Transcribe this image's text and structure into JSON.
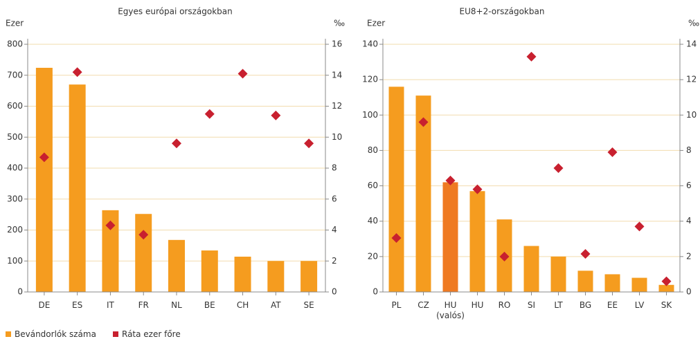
{
  "chart_data": [
    {
      "type": "bar",
      "title": "Egyes európai országokban",
      "y_label": "Ezer",
      "y2_label": "‰",
      "categories": [
        "DE",
        "ES",
        "IT",
        "FR",
        "NL",
        "BE",
        "CH",
        "AT",
        "SE"
      ],
      "series": [
        {
          "name": "Bevándorlók száma",
          "color": "#f59c1f",
          "values": [
            724,
            670,
            264,
            252,
            168,
            134,
            114,
            100,
            100
          ]
        },
        {
          "name": "Ráta ezer főre",
          "color": "#c8202f",
          "axis": "y2",
          "marker": "diamond",
          "values": [
            8.7,
            14.2,
            4.3,
            3.7,
            9.6,
            11.5,
            14.1,
            11.4,
            9.6
          ]
        }
      ],
      "ylim": [
        0,
        800
      ],
      "yticks": [
        0,
        100,
        200,
        300,
        400,
        500,
        600,
        700,
        800
      ],
      "y2lim": [
        0,
        16
      ],
      "y2ticks": [
        0,
        2,
        4,
        6,
        8,
        10,
        12,
        14,
        16
      ],
      "grid": true
    },
    {
      "type": "bar",
      "title": "EU8+2-országokban",
      "y_label": "Ezer",
      "y2_label": "‰",
      "categories": [
        "PL",
        "CZ",
        "HU (valós)",
        "HU",
        "RO",
        "SI",
        "LT",
        "BG",
        "EE",
        "LV",
        "SK"
      ],
      "series": [
        {
          "color": "#f59c1f",
          "colors": [
            "#f59c1f",
            "#f59c1f",
            "#ef7a22",
            "#f59c1f",
            "#f59c1f",
            "#f59c1f",
            "#f59c1f",
            "#f59c1f",
            "#f59c1f",
            "#f59c1f",
            "#f59c1f"
          ],
          "values": [
            116,
            111,
            62,
            57,
            41,
            26,
            20,
            12,
            10,
            8,
            4
          ]
        },
        {
          "color": "#c8202f",
          "axis": "y2",
          "marker": "diamond",
          "values": [
            3.05,
            9.6,
            6.3,
            5.8,
            2.0,
            13.3,
            7.0,
            2.15,
            7.9,
            3.7,
            0.6
          ]
        }
      ],
      "ylim": [
        0,
        140
      ],
      "yticks": [
        0,
        20,
        40,
        60,
        80,
        100,
        120,
        140
      ],
      "y2lim": [
        0,
        14
      ],
      "y2ticks": [
        0,
        2,
        4,
        6,
        8,
        10,
        12,
        14
      ],
      "grid": true
    }
  ]
}
